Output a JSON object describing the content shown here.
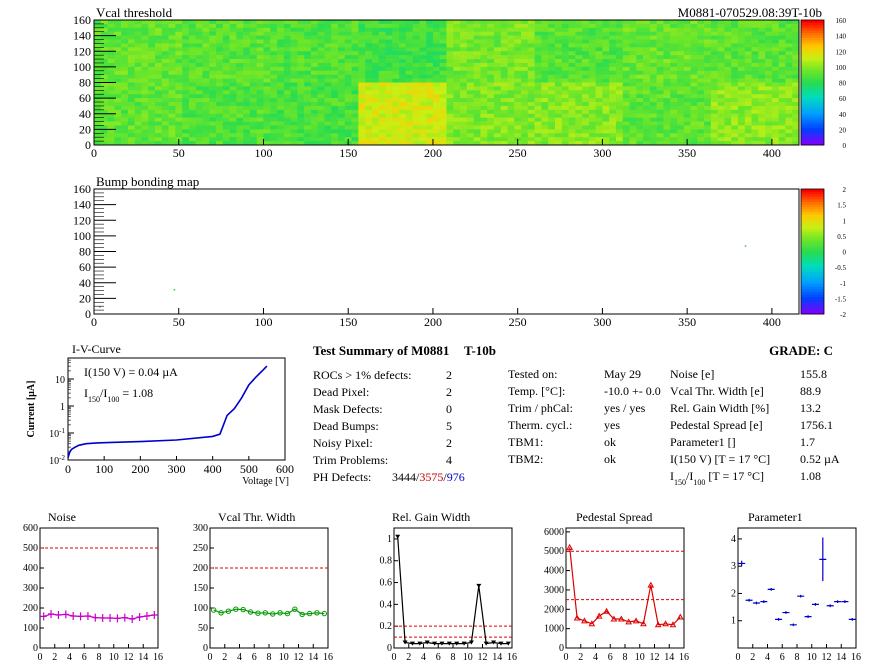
{
  "header": {
    "map1_title": "Vcal threshold",
    "module_id": "M0881-070529.08:39T-10b",
    "map2_title": "Bump bonding map"
  },
  "chart_data": [
    {
      "type": "heatmap",
      "title": "Vcal threshold",
      "xlim": [
        0,
        416
      ],
      "ylim": [
        0,
        160
      ],
      "xticks": [
        "0",
        "50",
        "100",
        "150",
        "200",
        "250",
        "300",
        "350",
        "400"
      ],
      "yticks": [
        "0",
        "20",
        "40",
        "60",
        "80",
        "100",
        "120",
        "140",
        "160"
      ],
      "zlim": [
        0,
        165
      ],
      "zticks": [
        "0",
        "20",
        "40",
        "60",
        "80",
        "100",
        "120",
        "140",
        "160"
      ],
      "roc_values_bottom": [
        95,
        92,
        90,
        118,
        102,
        103,
        95,
        104
      ],
      "roc_values_top": [
        96,
        94,
        92,
        88,
        100,
        93,
        97,
        94
      ]
    },
    {
      "type": "heatmap",
      "title": "Bump bonding map",
      "xlim": [
        0,
        416
      ],
      "ylim": [
        0,
        160
      ],
      "xticks": [
        "0",
        "50",
        "100",
        "150",
        "200",
        "250",
        "300",
        "350",
        "400"
      ],
      "yticks": [
        "0",
        "20",
        "40",
        "60",
        "80",
        "100",
        "120",
        "140",
        "160"
      ],
      "zlim": [
        -2,
        2
      ],
      "zticks": [
        "2",
        "1.5",
        "1",
        "0.5",
        "0",
        "-0.5",
        "-1",
        "-1.5",
        "-2"
      ],
      "points": [
        {
          "x": 47,
          "y": 32
        },
        {
          "x": 3,
          "y": 10
        },
        {
          "x": 384,
          "y": 88
        }
      ]
    },
    {
      "type": "line",
      "title": "I-V-Curve",
      "xlabel": "Voltage [V]",
      "ylabel": "Current [µA]",
      "xlim": [
        0,
        600
      ],
      "ylim_log": [
        0.01,
        60
      ],
      "xticks": [
        "0",
        "100",
        "200",
        "300",
        "400",
        "500",
        "600"
      ],
      "annotation_i150": "I(150 V) = 0.04 µA",
      "annotation_ratio_label": "I",
      "annotation_ratio_sub1": "150",
      "annotation_ratio_sub2": "100",
      "annotation_ratio_value": "=  1.08",
      "x": [
        0,
        5,
        10,
        20,
        30,
        50,
        80,
        120,
        200,
        300,
        400,
        420,
        430,
        440,
        460,
        480,
        500,
        520,
        540,
        550
      ],
      "y": [
        0.012,
        0.02,
        0.025,
        0.03,
        0.035,
        0.04,
        0.043,
        0.045,
        0.048,
        0.055,
        0.075,
        0.09,
        0.2,
        0.45,
        0.8,
        2,
        6,
        12,
        22,
        30
      ]
    },
    {
      "type": "line",
      "title": "Noise",
      "xlim": [
        0,
        16
      ],
      "ylim": [
        0,
        600
      ],
      "xticks": [
        "0",
        "2",
        "4",
        "6",
        "8",
        "10",
        "12",
        "14",
        "16"
      ],
      "yticks": [
        "0",
        "100",
        "200",
        "300",
        "400",
        "500",
        "600"
      ],
      "threshold": [
        500
      ],
      "values": [
        158,
        170,
        165,
        168,
        160,
        158,
        160,
        152,
        150,
        150,
        148,
        152,
        145,
        155,
        160,
        165
      ]
    },
    {
      "type": "line",
      "title": "Vcal Thr. Width",
      "xlim": [
        0,
        16
      ],
      "ylim": [
        0,
        300
      ],
      "xticks": [
        "0",
        "2",
        "4",
        "6",
        "8",
        "10",
        "12",
        "14",
        "16"
      ],
      "yticks": [
        "0",
        "50",
        "100",
        "150",
        "200",
        "250",
        "300"
      ],
      "threshold": [
        200
      ],
      "values": [
        95,
        88,
        92,
        97,
        96,
        90,
        87,
        88,
        85,
        88,
        86,
        97,
        84,
        86,
        88,
        86
      ]
    },
    {
      "type": "line",
      "title": "Rel. Gain Width",
      "xlim": [
        0,
        16
      ],
      "ylim": [
        0,
        1.1
      ],
      "xticks": [
        "0",
        "2",
        "4",
        "6",
        "8",
        "10",
        "12",
        "14",
        "16"
      ],
      "yticks": [
        "0",
        "0.2",
        "0.4",
        "0.6",
        "0.8",
        "1"
      ],
      "threshold": [
        0.2,
        0.1
      ],
      "values": [
        1.02,
        0.05,
        0.04,
        0.04,
        0.05,
        0.04,
        0.04,
        0.04,
        0.04,
        0.04,
        0.05,
        0.57,
        0.04,
        0.05,
        0.04,
        0.04
      ]
    },
    {
      "type": "line",
      "title": "Pedestal Spread",
      "xlim": [
        0,
        16
      ],
      "ylim": [
        0,
        6200
      ],
      "xticks": [
        "0",
        "2",
        "4",
        "6",
        "8",
        "10",
        "12",
        "14",
        "16"
      ],
      "yticks": [
        "0",
        "1000",
        "2000",
        "3000",
        "4000",
        "5000",
        "6000"
      ],
      "threshold": [
        5000,
        2500
      ],
      "values": [
        5200,
        1550,
        1400,
        1250,
        1650,
        1900,
        1500,
        1500,
        1350,
        1400,
        1250,
        3250,
        1200,
        1250,
        1200,
        1600
      ]
    },
    {
      "type": "scatter",
      "title": "Parameter1",
      "xlim": [
        0,
        16
      ],
      "ylim": [
        0,
        4.4
      ],
      "xticks": [
        "0",
        "2",
        "4",
        "6",
        "8",
        "10",
        "12",
        "14",
        "16"
      ],
      "yticks": [
        "1",
        "2",
        "3",
        "4"
      ],
      "values": [
        3.1,
        1.75,
        1.65,
        1.7,
        2.15,
        1.05,
        1.3,
        0.85,
        1.9,
        1.15,
        1.6,
        3.25,
        1.55,
        1.7,
        1.7,
        1.05
      ],
      "errors": [
        0.1,
        0.05,
        0.05,
        0.05,
        0.05,
        0.05,
        0.05,
        0.05,
        0.05,
        0.05,
        0.05,
        0.8,
        0.05,
        0.05,
        0.05,
        0.05
      ]
    }
  ],
  "summary": {
    "title": "Test Summary of M0881",
    "tag": "T-10b",
    "grade_label": "GRADE:  C",
    "rows_left": [
      {
        "label": "ROCs > 1% defects:",
        "value": "2"
      },
      {
        "label": "Dead Pixel:",
        "value": "2"
      },
      {
        "label": "Mask Defects:",
        "value": "0"
      },
      {
        "label": "Dead Bumps:",
        "value": "5"
      },
      {
        "label": "Noisy Pixel:",
        "value": "2"
      },
      {
        "label": "Trim Problems:",
        "value": "4"
      }
    ],
    "ph_label": "PH Defects:",
    "ph_v1": "3444",
    "ph_sep": "/",
    "ph_v2": "3575",
    "ph_v3": "976",
    "rows_mid": [
      {
        "label": "Tested on:",
        "value": "May 29"
      },
      {
        "label": "Temp. [°C]:",
        "value": "-10.0 +- 0.0"
      },
      {
        "label": "Trim / phCal:",
        "value": "yes / yes"
      },
      {
        "label": "Therm. cycl.:",
        "value": "yes"
      },
      {
        "label": "TBM1:",
        "value": "ok"
      },
      {
        "label": "TBM2:",
        "value": "ok"
      }
    ],
    "rows_right": [
      {
        "label": "Noise [e]",
        "value": "155.8"
      },
      {
        "label": "Vcal Thr. Width [e]",
        "value": "88.9"
      },
      {
        "label": "Rel. Gain Width [%]",
        "value": "13.2"
      },
      {
        "label": "Pedestal Spread [e]",
        "value": "1756.1"
      },
      {
        "label": "Parameter1 []",
        "value": "1.7"
      },
      {
        "label": "I(150 V)  [T = 17 °C]",
        "value": "0.52 µA"
      }
    ],
    "ratio_row": {
      "label": "I",
      "sub1": "150",
      "sub2": "100",
      "rest": "  [T = 17 °C]",
      "value": "1.08"
    }
  }
}
